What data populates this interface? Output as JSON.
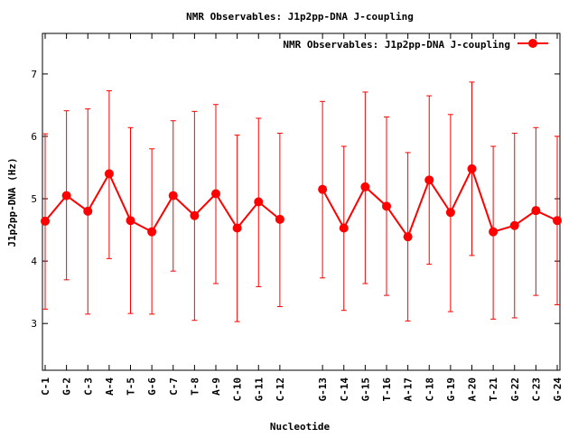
{
  "chart_data": {
    "type": "line",
    "title": "NMR Observables: J1p2pp-DNA J-coupling",
    "xlabel": "Nucleotide",
    "ylabel": "J1p2pp-DNA (Hz)",
    "ylim": [
      2.25,
      7.65
    ],
    "yticks": [
      3,
      4,
      5,
      6,
      7
    ],
    "grid": false,
    "legend_position": "top-right",
    "colors": {
      "series": "#ff0000",
      "axis": "#000000",
      "background": "#ffffff"
    },
    "categories": [
      "C-1",
      "G-2",
      "C-3",
      "A-4",
      "T-5",
      "G-6",
      "C-7",
      "T-8",
      "A-9",
      "C-10",
      "G-11",
      "C-12",
      "",
      "G-13",
      "C-14",
      "G-15",
      "T-16",
      "A-17",
      "C-18",
      "G-19",
      "A-20",
      "T-21",
      "G-22",
      "C-23",
      "G-24"
    ],
    "series": [
      {
        "name": "NMR Observables: J1p2pp-DNA J-coupling",
        "values": [
          4.64,
          5.05,
          4.8,
          5.4,
          4.65,
          4.47,
          5.05,
          4.73,
          5.08,
          4.53,
          4.95,
          4.67,
          null,
          5.15,
          4.53,
          5.19,
          4.88,
          4.39,
          5.3,
          4.78,
          5.48,
          4.47,
          4.57,
          4.81,
          4.65
        ],
        "error_low": [
          3.23,
          3.7,
          3.15,
          4.04,
          3.16,
          3.15,
          3.84,
          3.05,
          3.64,
          3.03,
          3.59,
          3.27,
          null,
          3.73,
          3.21,
          3.64,
          3.45,
          3.04,
          3.95,
          3.19,
          4.09,
          3.07,
          3.09,
          3.45,
          3.3
        ],
        "error_high": [
          6.04,
          6.41,
          6.44,
          6.73,
          6.14,
          5.8,
          6.25,
          6.4,
          6.51,
          6.02,
          6.29,
          6.05,
          null,
          6.56,
          5.84,
          6.71,
          6.31,
          5.74,
          6.65,
          6.35,
          6.87,
          5.84,
          6.05,
          6.14,
          6.0
        ]
      }
    ]
  }
}
